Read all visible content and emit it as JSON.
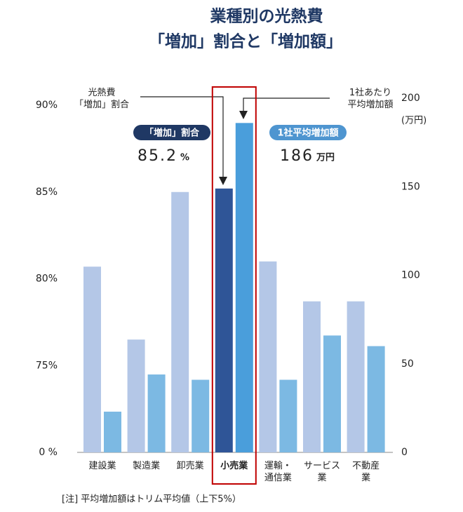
{
  "chart_data": {
    "type": "bar",
    "title": [
      "業種別の光熱費",
      "「増加」割合と「増加額」"
    ],
    "categories": [
      "建設業",
      "製造業",
      "卸売業",
      "小売業",
      "運輸・\n通信業",
      "サービス\n業",
      "不動産\n業"
    ],
    "series": [
      {
        "name": "光熱費\n「増加」割合",
        "color": "#b4c7e7",
        "highlight_color": "#2f5597",
        "values": [
          80.7,
          76.5,
          85.0,
          85.2,
          81.0,
          78.7,
          78.7
        ]
      },
      {
        "name": "1社あたり\n平均増加額",
        "color": "#7cb9e3",
        "highlight_color": "#4a9edb",
        "axis": "y2",
        "values": [
          23,
          44,
          41,
          186,
          41,
          66,
          60
        ]
      }
    ],
    "highlight_index": 3,
    "ylim": [
      0,
      90
    ],
    "yticks": [
      {
        "value": 0,
        "label": "0 %"
      },
      {
        "value": 75,
        "label": "75%"
      },
      {
        "value": 80,
        "label": "80%"
      },
      {
        "value": 85,
        "label": "85%"
      },
      {
        "value": 90,
        "label": "90%"
      }
    ],
    "axis_break": true,
    "y2lim": [
      0,
      200
    ],
    "y2ticks": [
      0,
      50,
      100,
      150,
      200
    ],
    "y2_unit": "(万円)",
    "callouts": [
      {
        "title": "「増加」割合",
        "unit": "%",
        "color": "#1f3864"
      },
      {
        "title": "1社平均増加額",
        "unit": "万円",
        "color": "#4e95d0"
      }
    ],
    "highlight_box_color": "#c00000",
    "note": "[注]  平均増加額はトリム平均値（上下5%）"
  }
}
